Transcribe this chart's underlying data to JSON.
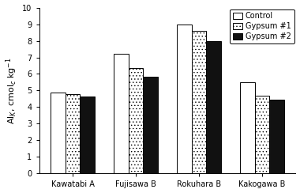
{
  "categories": [
    "Kawatabi A",
    "Fujisawa B",
    "Rokuhara B",
    "Kakogawa B"
  ],
  "series": {
    "Control": [
      4.9,
      7.2,
      9.0,
      5.5
    ],
    "Gypsum #1": [
      4.8,
      6.35,
      8.6,
      4.7
    ],
    "Gypsum #2": [
      4.65,
      5.85,
      8.0,
      4.45
    ]
  },
  "bar_colors_hex": [
    "#ffffff",
    "#ffffff",
    "#111111"
  ],
  "bar_hatches": [
    "",
    "....",
    ""
  ],
  "ylabel": "Al$_{K}$, cmol$_{c}$ kg$^{-1}$",
  "ylim": [
    0,
    10
  ],
  "yticks": [
    0,
    1,
    2,
    3,
    4,
    5,
    6,
    7,
    8,
    9,
    10
  ],
  "legend_labels": [
    "Control",
    "Gypsum #1",
    "Gypsum #2"
  ],
  "legend_colors": [
    "#ffffff",
    "#ffffff",
    "#111111"
  ],
  "legend_hatches": [
    "",
    "....",
    ""
  ],
  "bar_width": 0.23,
  "edgecolor": "#000000",
  "figsize": [
    3.8,
    2.44
  ],
  "dpi": 100,
  "tick_fontsize": 7,
  "ylabel_fontsize": 8,
  "legend_fontsize": 7
}
